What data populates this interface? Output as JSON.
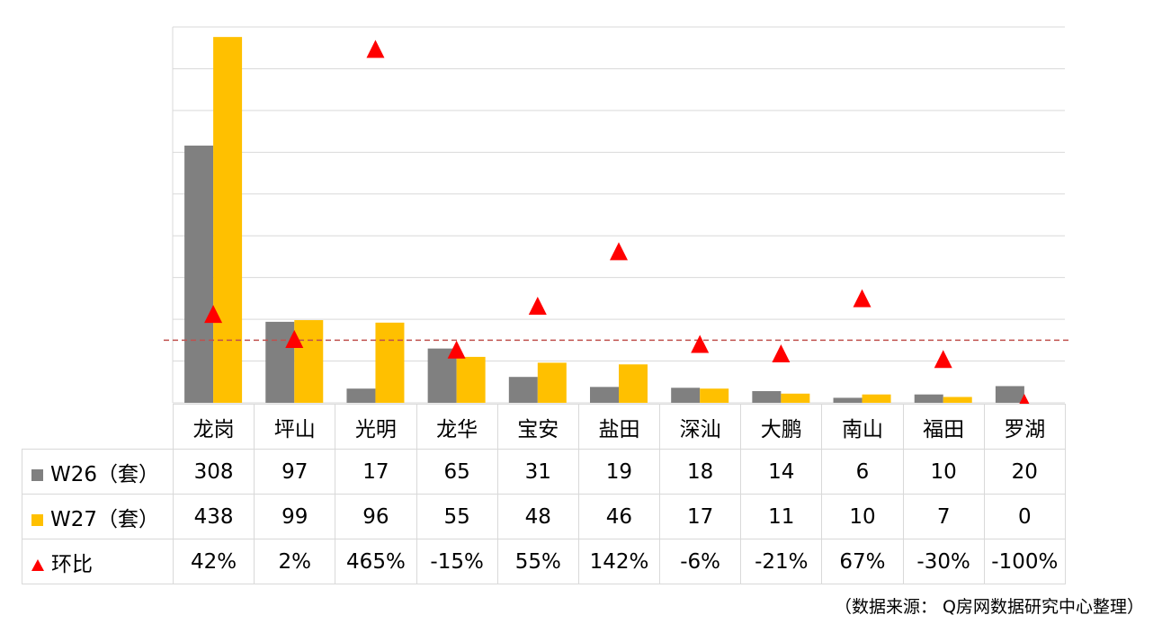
{
  "chart_data": {
    "type": "bar",
    "categories": [
      "龙岗",
      "坪山",
      "光明",
      "龙华",
      "宝安",
      "盐田",
      "深汕",
      "大鹏",
      "南山",
      "福田",
      "罗湖"
    ],
    "series": [
      {
        "name": "W26（套）",
        "values": [
          308,
          97,
          17,
          65,
          31,
          19,
          18,
          14,
          6,
          10,
          20
        ],
        "color": "#808080",
        "kind": "bar"
      },
      {
        "name": "W27（套）",
        "values": [
          438,
          99,
          96,
          55,
          48,
          46,
          17,
          11,
          10,
          7,
          0
        ],
        "color": "#ffc000",
        "kind": "bar"
      },
      {
        "name": "环比",
        "values": [
          0.42,
          0.02,
          4.65,
          -0.15,
          0.55,
          1.42,
          -0.06,
          -0.21,
          0.67,
          -0.3,
          -1.0
        ],
        "color": "#ff0000",
        "kind": "marker-triangle",
        "axis": "secondary"
      }
    ],
    "display": {
      "W26（套）": [
        "308",
        "97",
        "17",
        "65",
        "31",
        "19",
        "18",
        "14",
        "6",
        "10",
        "20"
      ],
      "W27（套）": [
        "438",
        "99",
        "96",
        "55",
        "48",
        "46",
        "17",
        "11",
        "10",
        "7",
        "0"
      ],
      "环比": [
        "42%",
        "2%",
        "465%",
        "-15%",
        "55%",
        "142%",
        "-6%",
        "-21%",
        "67%",
        "-30%",
        "-100%"
      ]
    },
    "ylim": [
      0,
      450
    ],
    "y2lim": [
      -1.0,
      5.0
    ],
    "reference_line": {
      "value": 0,
      "axis": "secondary",
      "style": "dashed",
      "color": "#c0504d"
    },
    "grid": true,
    "legend": "table",
    "title": "",
    "xlabel": "",
    "ylabel": ""
  },
  "source_note": "（数据来源： Q房网数据研究中心整理）"
}
